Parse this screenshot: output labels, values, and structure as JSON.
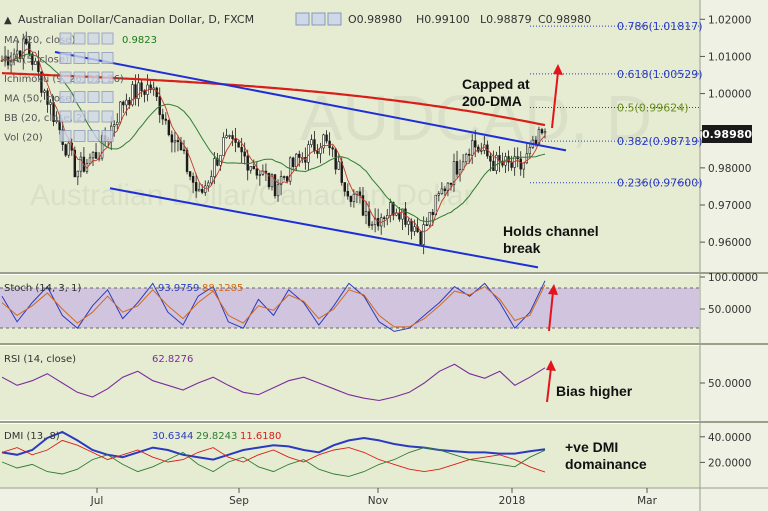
{
  "header": {
    "symbol": "Australian Dollar/Canadian Dollar, D, FXCM",
    "open": "O0.98980",
    "high": "H0.99100",
    "low": "L0.98879",
    "close": "C0.98980"
  },
  "price_badge": "0.98980",
  "watermark": "AUDCAD, D",
  "watermark_sub": "Australian Dollar/Canadian Dollar",
  "indicator_labels": [
    {
      "text": "MA (20, close)",
      "value": "0.9823",
      "color": "#1b7a1b"
    },
    {
      "text": "MA (5, close)",
      "value": "",
      "color": "#555"
    },
    {
      "text": "Ichimoku (9, 26, 52, 26)",
      "value": "",
      "color": "#555"
    },
    {
      "text": "MA (50, close)",
      "value": "",
      "color": "#555"
    },
    {
      "text": "BB (20, close, 2)",
      "value": "",
      "color": "#555"
    },
    {
      "text": "Vol (20)",
      "value": "",
      "color": "#555"
    }
  ],
  "annotations": {
    "capped": [
      "Capped at",
      "200-DMA"
    ],
    "holds": [
      "Holds channel",
      "break"
    ],
    "bias": "Bias higher",
    "dmi": [
      "+ve DMI",
      "domainance"
    ]
  },
  "stoch_label": {
    "name": "Stoch (14, 3, 1)",
    "k": "93.9759",
    "d": "88.1285"
  },
  "rsi_label": {
    "name": "RSI (14, close)",
    "value": "62.8276"
  },
  "dmi_label": {
    "name": "DMI (13, 8)",
    "adx": "30.6344",
    "pdi": "29.8243",
    "mdi": "11.6180"
  },
  "colors": {
    "candle_up": "#1a1a1a",
    "candle_down": "#1a1a1a",
    "ma200": "#d91e18",
    "ma20": "#2e7d32",
    "ma5": "#c0392b",
    "channel": "#1f2fd6",
    "fib": "#2a3bbf",
    "arrow": "#e3141b",
    "stoch_band": "#cdbde0",
    "rsi_line": "#7b2d9b"
  },
  "chart_data": [
    {
      "type": "candlestick",
      "title": "Australian Dollar/Canadian Dollar, D, FXCM",
      "x_ticks": [
        "Jul",
        "Sep",
        "Nov",
        "2018",
        "Mar"
      ],
      "y_ticks": [
        "1.02000",
        "1.01000",
        "1.00000",
        "0.99000",
        "0.98000",
        "0.97000",
        "0.96000"
      ],
      "ylim": [
        0.9525,
        1.0225
      ],
      "last_close": 0.9898,
      "fib_levels": [
        {
          "label": "0.786(1.01817)",
          "value": 1.01817
        },
        {
          "label": "0.618(1.00529)",
          "value": 1.00529
        },
        {
          "label": "0.5(0.99624)",
          "value": 0.99624
        },
        {
          "label": "0.382(0.98719)",
          "value": 0.98719
        },
        {
          "label": "0.236(0.97600)",
          "value": 0.976
        }
      ],
      "key_closes": [
        {
          "date": "late May",
          "value": 1.009
        },
        {
          "date": "early Jun",
          "value": 1.013
        },
        {
          "date": "mid Jun",
          "value": 0.996
        },
        {
          "date": "early Jul",
          "value": 0.979
        },
        {
          "date": "mid Jul",
          "value": 0.985
        },
        {
          "date": "late Jul",
          "value": 0.999
        },
        {
          "date": "mid Aug",
          "value": 1.002
        },
        {
          "date": "late Aug",
          "value": 0.988
        },
        {
          "date": "early Sep",
          "value": 0.972
        },
        {
          "date": "mid Sep",
          "value": 0.987
        },
        {
          "date": "late Sep",
          "value": 0.982
        },
        {
          "date": "early Oct",
          "value": 0.975
        },
        {
          "date": "mid Oct",
          "value": 0.982
        },
        {
          "date": "late Oct",
          "value": 0.988
        },
        {
          "date": "early Nov",
          "value": 0.975
        },
        {
          "date": "mid Nov",
          "value": 0.966
        },
        {
          "date": "late Nov",
          "value": 0.97
        },
        {
          "date": "early Dec",
          "value": 0.962
        },
        {
          "date": "mid Dec",
          "value": 0.976
        },
        {
          "date": "late Dec",
          "value": 0.987
        },
        {
          "date": "early Jan",
          "value": 0.981
        },
        {
          "date": "mid Jan",
          "value": 0.98
        },
        {
          "date": "late Jan",
          "value": 0.9898
        }
      ]
    },
    {
      "type": "line",
      "title": "Stoch (14, 3, 1)",
      "y_ticks": [
        "100.0000",
        "50.0000"
      ],
      "ylim": [
        0,
        100
      ],
      "band": [
        20,
        80
      ],
      "series": [
        {
          "name": "93.9759",
          "values": [
            70,
            30,
            60,
            85,
            40,
            20,
            55,
            80,
            35,
            60,
            90,
            45,
            25,
            70,
            85,
            30,
            20,
            65,
            40,
            80,
            60,
            25,
            55,
            90,
            70,
            30,
            15,
            20,
            40,
            60,
            85,
            70,
            90,
            60,
            20,
            45,
            94
          ]
        },
        {
          "name": "88.1285",
          "values": [
            60,
            40,
            55,
            75,
            50,
            28,
            45,
            70,
            45,
            55,
            80,
            55,
            35,
            60,
            78,
            40,
            28,
            55,
            48,
            72,
            62,
            35,
            50,
            80,
            72,
            40,
            22,
            22,
            35,
            55,
            78,
            72,
            85,
            65,
            32,
            40,
            88
          ]
        }
      ]
    },
    {
      "type": "line",
      "title": "RSI (14, close)",
      "y_ticks": [
        "50.0000"
      ],
      "ylim": [
        20,
        80
      ],
      "series": [
        {
          "name": "62.8276",
          "values": [
            55,
            48,
            52,
            58,
            50,
            42,
            38,
            45,
            55,
            60,
            52,
            48,
            44,
            50,
            55,
            48,
            42,
            40,
            46,
            52,
            55,
            50,
            45,
            40,
            37,
            35,
            38,
            42,
            50,
            60,
            66,
            58,
            54,
            60,
            48,
            55,
            63
          ]
        }
      ]
    },
    {
      "type": "line",
      "title": "DMI (13, 8)",
      "y_ticks": [
        "40.0000",
        "20.0000"
      ],
      "ylim": [
        0,
        50
      ],
      "series": [
        {
          "name": "30.6344",
          "values": [
            28,
            26,
            30,
            40,
            45,
            38,
            30,
            26,
            24,
            28,
            32,
            30,
            26,
            24,
            22,
            26,
            30,
            32,
            34,
            33,
            30,
            28,
            34,
            38,
            40,
            38,
            35,
            33,
            32,
            30,
            29,
            28,
            28,
            27,
            27,
            29,
            30.6
          ]
        },
        {
          "name": "29.8243",
          "values": [
            20,
            15,
            18,
            12,
            10,
            14,
            22,
            26,
            18,
            12,
            16,
            22,
            28,
            18,
            12,
            20,
            24,
            16,
            12,
            18,
            22,
            14,
            10,
            8,
            12,
            18,
            22,
            28,
            32,
            30,
            26,
            22,
            20,
            18,
            16,
            24,
            29.8
          ]
        },
        {
          "name": "11.6180",
          "values": [
            28,
            32,
            26,
            30,
            38,
            34,
            28,
            22,
            26,
            30,
            24,
            20,
            22,
            28,
            32,
            24,
            20,
            26,
            30,
            24,
            20,
            26,
            30,
            32,
            28,
            22,
            18,
            14,
            12,
            14,
            18,
            22,
            24,
            26,
            22,
            16,
            11.6
          ]
        }
      ]
    }
  ],
  "toolbar_icons": [
    "eye-icon",
    "gear-icon",
    "close-icon",
    "plus-icon"
  ],
  "x_axis": [
    "Jul",
    "Sep",
    "Nov",
    "2018",
    "Mar"
  ]
}
